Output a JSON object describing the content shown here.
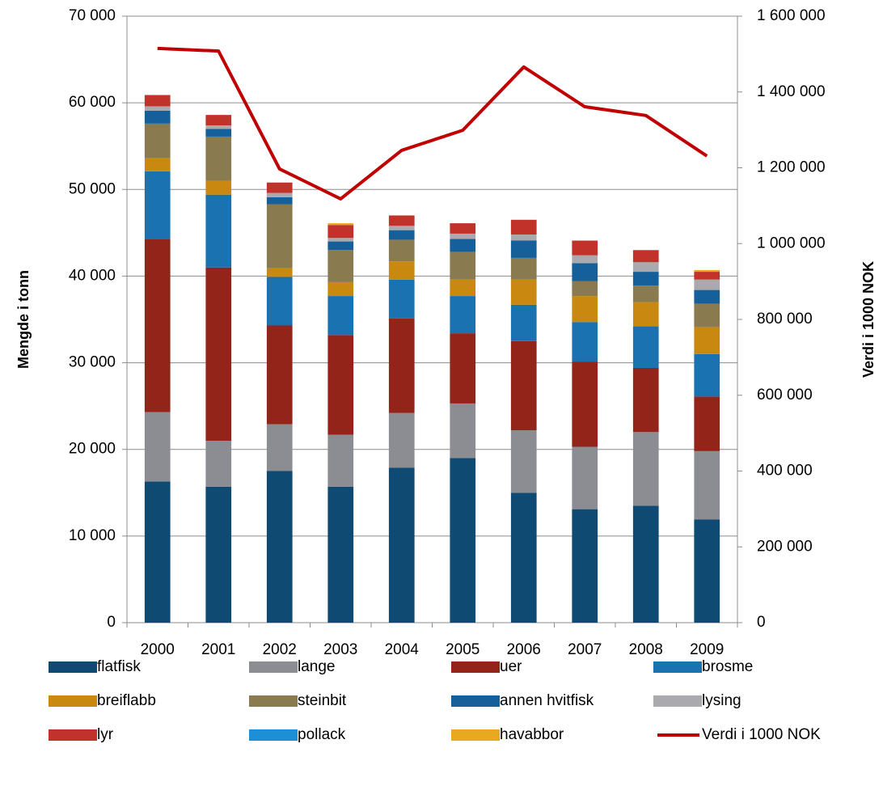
{
  "chart_data": {
    "type": "bar",
    "stacked": true,
    "y_axis_label": "Mengde i tonn",
    "y2_axis_label": "Verdi i 1000 NOK",
    "categories": [
      "2000",
      "2001",
      "2002",
      "2003",
      "2004",
      "2005",
      "2006",
      "2007",
      "2008",
      "2009"
    ],
    "series": [
      {
        "name": "flatfisk",
        "color": "#0f4a73",
        "values": [
          16300,
          15700,
          17500,
          15700,
          17900,
          19000,
          15000,
          13100,
          13500,
          11900
        ]
      },
      {
        "name": "lange",
        "color": "#8c8c93",
        "values": [
          8000,
          5300,
          5400,
          6000,
          6300,
          6300,
          7200,
          7200,
          8500,
          7900
        ]
      },
      {
        "name": "uer",
        "color": "#93241a",
        "values": [
          20000,
          20000,
          11400,
          11500,
          10900,
          8100,
          10300,
          9800,
          7400,
          6300
        ]
      },
      {
        "name": "brosme",
        "color": "#1b72b0",
        "values": [
          7800,
          8400,
          5600,
          4500,
          4500,
          4300,
          4200,
          4600,
          4800,
          4900
        ]
      },
      {
        "name": "breiflabb",
        "color": "#c98810",
        "values": [
          1500,
          1600,
          1000,
          1600,
          2100,
          1900,
          2900,
          3000,
          2800,
          3100
        ]
      },
      {
        "name": "steinbit",
        "color": "#8a7a50",
        "values": [
          4000,
          5100,
          7400,
          3700,
          2500,
          3200,
          2500,
          1700,
          1900,
          2700
        ]
      },
      {
        "name": "annen hvitfisk",
        "color": "#15609a",
        "values": [
          1500,
          900,
          800,
          1000,
          1100,
          1500,
          2000,
          2100,
          1600,
          1600
        ]
      },
      {
        "name": "lysing",
        "color": "#aaaaae",
        "values": [
          500,
          400,
          500,
          400,
          500,
          600,
          700,
          900,
          1100,
          1200
        ]
      },
      {
        "name": "lyr",
        "color": "#c1332a",
        "values": [
          1300,
          1200,
          1200,
          1500,
          1200,
          1200,
          1700,
          1700,
          1400,
          900
        ]
      },
      {
        "name": "pollack",
        "color": "#1c8fd6",
        "values": [
          0,
          0,
          0,
          0,
          0,
          0,
          0,
          0,
          0,
          0
        ]
      },
      {
        "name": "havabbor",
        "color": "#e8a820",
        "values": [
          0,
          0,
          0,
          200,
          0,
          0,
          0,
          0,
          0,
          200
        ]
      },
      {
        "name": "Verdi i 1000 NOK",
        "type": "line",
        "axis": "y2",
        "color": "#c00000",
        "values": [
          1515000,
          1508000,
          1197000,
          1118000,
          1246000,
          1299000,
          1466000,
          1361000,
          1338000,
          1231000
        ]
      }
    ],
    "ylim": [
      0,
      70000
    ],
    "yticks": [
      0,
      {
        "value": 10000,
        "label": "10 000"
      },
      {
        "value": 20000,
        "label": "20 000"
      },
      {
        "value": 30000,
        "label": "30 000"
      },
      {
        "value": 40000,
        "label": "40 000"
      },
      {
        "value": 50000,
        "label": "50 000"
      },
      {
        "value": 60000,
        "label": "60 000"
      },
      {
        "value": 70000,
        "label": "70 000"
      }
    ],
    "y2lim": [
      0,
      1600000
    ],
    "y2ticks": [
      0,
      {
        "value": 200000,
        "label": "200 000"
      },
      {
        "value": 400000,
        "label": "400 000"
      },
      {
        "value": 600000,
        "label": "600 000"
      },
      {
        "value": 800000,
        "label": "800 000"
      },
      {
        "value": 1000000,
        "label": "1 000 000"
      },
      {
        "value": 1200000,
        "label": "1 200 000"
      },
      {
        "value": 1400000,
        "label": "1 400 000"
      },
      {
        "value": 1600000,
        "label": "1 600 000"
      }
    ],
    "grid": true,
    "legend": "bottom"
  }
}
